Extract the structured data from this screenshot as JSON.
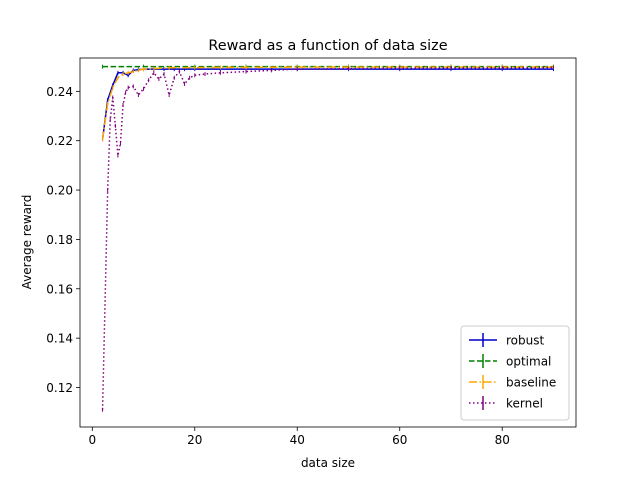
{
  "chart_data": {
    "type": "line",
    "title": "Reward as a function of data size",
    "xlabel": "data size",
    "ylabel": "Average reward",
    "xlim": [
      -2.4,
      94.4
    ],
    "ylim": [
      0.104,
      0.2535
    ],
    "xticks": [
      0,
      20,
      40,
      60,
      80
    ],
    "yticks": [
      0.12,
      0.14,
      0.16,
      0.18,
      0.2,
      0.22,
      0.24
    ],
    "grid": false,
    "legend_position": "lower-right",
    "series": [
      {
        "name": "robust",
        "color": "#0000cc",
        "dash": "solid",
        "x": [
          2,
          3,
          4,
          5,
          6,
          7,
          8,
          9,
          10,
          12,
          14,
          16,
          18,
          20,
          25,
          30,
          35,
          40,
          50,
          60,
          70,
          80,
          90
        ],
        "y": [
          0.2205,
          0.2365,
          0.2425,
          0.2475,
          0.2475,
          0.2465,
          0.2485,
          0.2488,
          0.249,
          0.249,
          0.249,
          0.249,
          0.249,
          0.249,
          0.249,
          0.249,
          0.249,
          0.249,
          0.249,
          0.249,
          0.249,
          0.249,
          0.249
        ]
      },
      {
        "name": "optimal",
        "color": "#008000",
        "dash": "dashed",
        "x": [
          2,
          10,
          20,
          30,
          40,
          50,
          60,
          70,
          80,
          90
        ],
        "y": [
          0.25,
          0.25,
          0.25,
          0.25,
          0.25,
          0.25,
          0.25,
          0.25,
          0.25,
          0.25
        ]
      },
      {
        "name": "baseline",
        "color": "#ffa500",
        "dash": "dashdot",
        "x": [
          2,
          3,
          4,
          5,
          6,
          7,
          8,
          9,
          10,
          12,
          15,
          20,
          25,
          30,
          40,
          50,
          60,
          70,
          80,
          90
        ],
        "y": [
          0.2205,
          0.235,
          0.2415,
          0.2455,
          0.247,
          0.2475,
          0.248,
          0.2485,
          0.249,
          0.2492,
          0.2495,
          0.2496,
          0.2497,
          0.2497,
          0.2498,
          0.2498,
          0.2498,
          0.2498,
          0.2498,
          0.2498
        ]
      },
      {
        "name": "kernel",
        "color": "#800080",
        "dash": "dotted",
        "x": [
          2,
          3,
          3.5,
          4,
          4.5,
          5,
          5.5,
          6,
          6.5,
          7,
          8,
          9,
          10,
          11,
          12,
          13,
          14,
          15,
          16,
          17,
          18,
          19,
          20,
          22,
          25,
          30,
          35,
          40,
          50,
          60,
          70,
          80,
          90
        ],
        "y": [
          0.111,
          0.2,
          0.2285,
          0.2375,
          0.226,
          0.214,
          0.219,
          0.2345,
          0.2395,
          0.2415,
          0.242,
          0.2385,
          0.241,
          0.2445,
          0.2475,
          0.245,
          0.247,
          0.2385,
          0.2455,
          0.248,
          0.243,
          0.2455,
          0.2465,
          0.247,
          0.2475,
          0.248,
          0.2485,
          0.249,
          0.2492,
          0.2494,
          0.2495,
          0.2495,
          0.2496
        ]
      }
    ]
  }
}
